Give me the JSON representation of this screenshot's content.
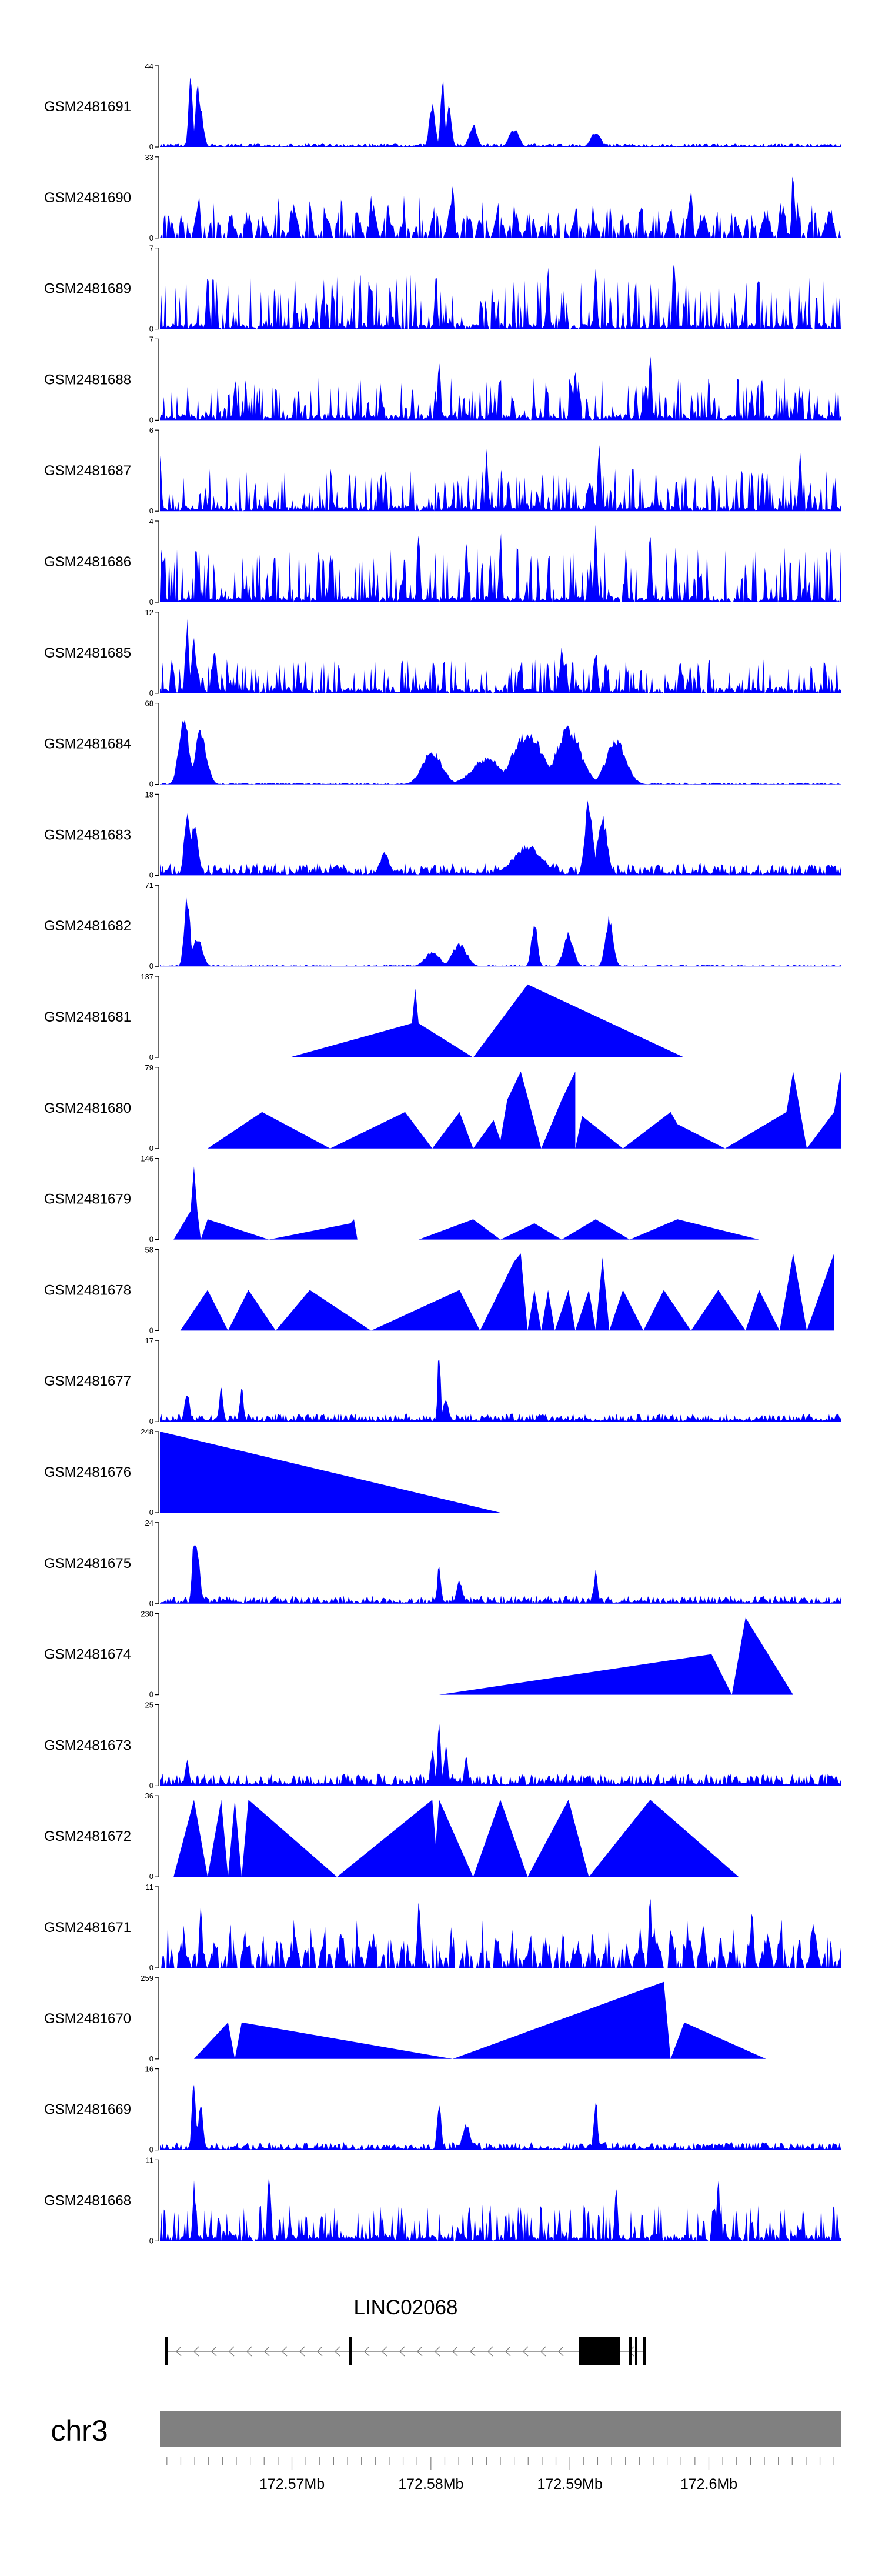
{
  "chart_data": {
    "type": "area",
    "region": {
      "chromosome": "chr3",
      "start_mb": 172.5605,
      "end_mb": 172.6095
    },
    "x_axis": {
      "ticks": [
        "172.57Mb",
        "172.58Mb",
        "172.59Mb",
        "172.6Mb"
      ],
      "tick_values_mb": [
        172.57,
        172.58,
        172.59,
        172.6
      ]
    },
    "tracks": [
      {
        "name": "GSM2481691",
        "ymax": 44,
        "style": "dense",
        "noise": 0.05,
        "peaks": [
          [
            0.045,
            1.0,
            0.004
          ],
          [
            0.055,
            0.95,
            0.004
          ],
          [
            0.06,
            0.5,
            0.006
          ],
          [
            0.4,
            0.6,
            0.006
          ],
          [
            0.415,
            1.0,
            0.004
          ],
          [
            0.425,
            0.55,
            0.005
          ],
          [
            0.46,
            0.3,
            0.008
          ],
          [
            0.52,
            0.25,
            0.01
          ],
          [
            0.64,
            0.2,
            0.01
          ]
        ],
        "color": "#0000ff"
      },
      {
        "name": "GSM2481690",
        "ymax": 33,
        "style": "tri",
        "noise": 0.35,
        "peaks": [
          [
            0.31,
            0.6,
            0.003
          ],
          [
            0.43,
            0.75,
            0.003
          ],
          [
            0.78,
            0.7,
            0.003
          ],
          [
            0.93,
            0.95,
            0.003
          ]
        ],
        "color": "#0000ff"
      },
      {
        "name": "GSM2481689",
        "ymax": 7,
        "style": "spiky",
        "noise": 0.45,
        "peaks": [
          [
            0.755,
            1.0,
            0.003
          ],
          [
            0.57,
            0.85,
            0.003
          ],
          [
            0.64,
            0.8,
            0.003
          ],
          [
            0.07,
            0.75,
            0.003
          ]
        ],
        "color": "#0000ff"
      },
      {
        "name": "GSM2481688",
        "ymax": 7,
        "style": "spiky",
        "noise": 0.35,
        "peaks": [
          [
            0.72,
            1.0,
            0.003
          ],
          [
            0.41,
            0.85,
            0.003
          ],
          [
            0.61,
            0.8,
            0.003
          ]
        ],
        "color": "#0000ff"
      },
      {
        "name": "GSM2481687",
        "ymax": 6,
        "style": "spiky",
        "noise": 0.35,
        "peaks": [
          [
            0.645,
            1.0,
            0.003
          ],
          [
            0.0,
            0.9,
            0.003
          ],
          [
            0.48,
            0.8,
            0.003
          ],
          [
            0.94,
            0.85,
            0.003
          ]
        ],
        "color": "#0000ff"
      },
      {
        "name": "GSM2481686",
        "ymax": 4,
        "style": "spiky",
        "noise": 0.45,
        "peaks": [
          [
            0.38,
            1.0,
            0.003
          ],
          [
            0.5,
            0.95,
            0.003
          ],
          [
            0.64,
            1.0,
            0.003
          ],
          [
            0.72,
            0.95,
            0.003
          ],
          [
            0.45,
            0.95,
            0.003
          ]
        ],
        "color": "#0000ff"
      },
      {
        "name": "GSM2481685",
        "ymax": 12,
        "style": "spiky",
        "noise": 0.28,
        "peaks": [
          [
            0.04,
            0.95,
            0.004
          ],
          [
            0.05,
            0.7,
            0.005
          ],
          [
            0.08,
            0.55,
            0.005
          ],
          [
            0.59,
            0.6,
            0.004
          ],
          [
            0.64,
            0.6,
            0.004
          ]
        ],
        "color": "#0000ff"
      },
      {
        "name": "GSM2481684",
        "ymax": 68,
        "style": "dense",
        "noise": 0.02,
        "peaks": [
          [
            0.035,
            0.95,
            0.01
          ],
          [
            0.06,
            0.7,
            0.012
          ],
          [
            0.4,
            0.45,
            0.02
          ],
          [
            0.48,
            0.35,
            0.03
          ],
          [
            0.54,
            0.7,
            0.03
          ],
          [
            0.6,
            0.75,
            0.025
          ],
          [
            0.67,
            0.6,
            0.02
          ]
        ],
        "color": "#0000ff"
      },
      {
        "name": "GSM2481683",
        "ymax": 18,
        "style": "dense",
        "noise": 0.15,
        "peaks": [
          [
            0.04,
            0.95,
            0.006
          ],
          [
            0.05,
            0.7,
            0.008
          ],
          [
            0.33,
            0.3,
            0.01
          ],
          [
            0.54,
            0.4,
            0.03
          ],
          [
            0.63,
            1.0,
            0.008
          ],
          [
            0.65,
            0.8,
            0.01
          ]
        ],
        "color": "#0000ff"
      },
      {
        "name": "GSM2481682",
        "ymax": 71,
        "style": "dense",
        "noise": 0.02,
        "peaks": [
          [
            0.04,
            0.95,
            0.006
          ],
          [
            0.055,
            0.4,
            0.01
          ],
          [
            0.4,
            0.2,
            0.015
          ],
          [
            0.44,
            0.3,
            0.015
          ],
          [
            0.55,
            0.6,
            0.006
          ],
          [
            0.6,
            0.45,
            0.01
          ],
          [
            0.66,
            0.65,
            0.008
          ]
        ],
        "color": "#0000ff"
      },
      {
        "name": "GSM2481681",
        "ymax": 137,
        "style": "poly",
        "points": [
          [
            0.19,
            0
          ],
          [
            0.37,
            0.42
          ],
          [
            0.375,
            0.85
          ],
          [
            0.38,
            0.42
          ],
          [
            0.46,
            0
          ],
          [
            0.54,
            0.9
          ],
          [
            0.77,
            0
          ]
        ],
        "color": "#0000ff"
      },
      {
        "name": "GSM2481680",
        "ymax": 79,
        "style": "poly",
        "points": [
          [
            0.07,
            0
          ],
          [
            0.15,
            0.45
          ],
          [
            0.25,
            0
          ],
          [
            0.36,
            0.45
          ],
          [
            0.4,
            0
          ],
          [
            0.44,
            0.45
          ],
          [
            0.46,
            0
          ],
          [
            0.49,
            0.35
          ],
          [
            0.5,
            0.1
          ],
          [
            0.51,
            0.6
          ],
          [
            0.53,
            0.95
          ],
          [
            0.56,
            0
          ],
          [
            0.59,
            0.6
          ],
          [
            0.61,
            0.95
          ],
          [
            0.61,
            0
          ],
          [
            0.62,
            0.4
          ],
          [
            0.68,
            0
          ],
          [
            0.75,
            0.45
          ],
          [
            0.76,
            0.3
          ],
          [
            0.83,
            0
          ],
          [
            0.92,
            0.45
          ],
          [
            0.93,
            0.95
          ],
          [
            0.95,
            0
          ],
          [
            0.99,
            0.45
          ],
          [
            1.0,
            0.95
          ],
          [
            1.0,
            0
          ]
        ],
        "color": "#0000ff"
      },
      {
        "name": "GSM2481679",
        "ymax": 146,
        "style": "poly",
        "points": [
          [
            0.02,
            0
          ],
          [
            0.045,
            0.35
          ],
          [
            0.05,
            0.9
          ],
          [
            0.055,
            0.35
          ],
          [
            0.06,
            0
          ],
          [
            0.07,
            0.25
          ],
          [
            0.16,
            0
          ],
          [
            0.28,
            0.2
          ],
          [
            0.285,
            0.25
          ],
          [
            0.29,
            0
          ],
          [
            0.31,
            0
          ],
          [
            0.38,
            0
          ],
          [
            0.46,
            0.25
          ],
          [
            0.5,
            0
          ],
          [
            0.55,
            0.2
          ],
          [
            0.59,
            0
          ],
          [
            0.64,
            0.25
          ],
          [
            0.69,
            0
          ],
          [
            0.76,
            0.25
          ],
          [
            0.88,
            0
          ]
        ],
        "color": "#0000ff"
      },
      {
        "name": "GSM2481678",
        "ymax": 58,
        "style": "poly",
        "points": [
          [
            0.03,
            0
          ],
          [
            0.07,
            0.5
          ],
          [
            0.1,
            0
          ],
          [
            0.13,
            0.5
          ],
          [
            0.17,
            0
          ],
          [
            0.22,
            0.5
          ],
          [
            0.31,
            0
          ],
          [
            0.44,
            0.5
          ],
          [
            0.47,
            0
          ],
          [
            0.52,
            0.85
          ],
          [
            0.53,
            0.95
          ],
          [
            0.54,
            0
          ],
          [
            0.55,
            0.5
          ],
          [
            0.56,
            0
          ],
          [
            0.57,
            0.5
          ],
          [
            0.58,
            0
          ],
          [
            0.6,
            0.5
          ],
          [
            0.61,
            0
          ],
          [
            0.63,
            0.5
          ],
          [
            0.64,
            0
          ],
          [
            0.65,
            0.9
          ],
          [
            0.66,
            0
          ],
          [
            0.68,
            0.5
          ],
          [
            0.71,
            0
          ],
          [
            0.74,
            0.5
          ],
          [
            0.78,
            0
          ],
          [
            0.82,
            0.5
          ],
          [
            0.86,
            0
          ],
          [
            0.88,
            0.5
          ],
          [
            0.91,
            0
          ],
          [
            0.93,
            0.95
          ],
          [
            0.95,
            0
          ],
          [
            0.99,
            0.95
          ],
          [
            0.99,
            0
          ]
        ],
        "color": "#0000ff"
      },
      {
        "name": "GSM2481677",
        "ymax": 17,
        "style": "dense",
        "noise": 0.1,
        "peaks": [
          [
            0.04,
            0.4,
            0.005
          ],
          [
            0.09,
            0.5,
            0.004
          ],
          [
            0.12,
            0.45,
            0.004
          ],
          [
            0.41,
            1.0,
            0.003
          ],
          [
            0.42,
            0.35,
            0.005
          ]
        ],
        "color": "#0000ff"
      },
      {
        "name": "GSM2481676",
        "ymax": 248,
        "style": "poly",
        "points": [
          [
            0.0,
            0
          ],
          [
            0.0,
            1.0
          ],
          [
            0.5,
            0
          ]
        ],
        "color": "#0000ff"
      },
      {
        "name": "GSM2481675",
        "ymax": 24,
        "style": "dense",
        "noise": 0.1,
        "peaks": [
          [
            0.05,
            0.95,
            0.004
          ],
          [
            0.055,
            0.8,
            0.005
          ],
          [
            0.41,
            0.5,
            0.004
          ],
          [
            0.44,
            0.3,
            0.006
          ],
          [
            0.64,
            0.45,
            0.004
          ]
        ],
        "color": "#0000ff"
      },
      {
        "name": "GSM2481674",
        "ymax": 230,
        "style": "poly",
        "points": [
          [
            0.41,
            0
          ],
          [
            0.81,
            0.5
          ],
          [
            0.84,
            0
          ],
          [
            0.86,
            0.95
          ],
          [
            0.93,
            0
          ]
        ],
        "color": "#0000ff"
      },
      {
        "name": "GSM2481673",
        "ymax": 25,
        "style": "dense",
        "noise": 0.15,
        "peaks": [
          [
            0.4,
            0.5,
            0.004
          ],
          [
            0.41,
            1.0,
            0.003
          ],
          [
            0.42,
            0.55,
            0.004
          ],
          [
            0.45,
            0.4,
            0.004
          ],
          [
            0.04,
            0.4,
            0.004
          ]
        ],
        "color": "#0000ff"
      },
      {
        "name": "GSM2481672",
        "ymax": 36,
        "style": "poly",
        "points": [
          [
            0.02,
            0
          ],
          [
            0.05,
            0.95
          ],
          [
            0.07,
            0
          ],
          [
            0.09,
            0.95
          ],
          [
            0.1,
            0
          ],
          [
            0.11,
            0.95
          ],
          [
            0.12,
            0
          ],
          [
            0.13,
            0.95
          ],
          [
            0.26,
            0
          ],
          [
            0.4,
            0.95
          ],
          [
            0.405,
            0.4
          ],
          [
            0.41,
            0.95
          ],
          [
            0.46,
            0
          ],
          [
            0.5,
            0.95
          ],
          [
            0.54,
            0
          ],
          [
            0.6,
            0.95
          ],
          [
            0.63,
            0
          ],
          [
            0.72,
            0.95
          ],
          [
            0.85,
            0
          ]
        ],
        "color": "#0000ff"
      },
      {
        "name": "GSM2481671",
        "ymax": 11,
        "style": "tri",
        "noise": 0.4,
        "peaks": [
          [
            0.06,
            0.9,
            0.003
          ],
          [
            0.38,
            0.9,
            0.003
          ],
          [
            0.72,
            0.95,
            0.003
          ],
          [
            0.87,
            0.8,
            0.003
          ]
        ],
        "color": "#0000ff"
      },
      {
        "name": "GSM2481670",
        "ymax": 259,
        "style": "poly",
        "points": [
          [
            0.05,
            0
          ],
          [
            0.1,
            0.45
          ],
          [
            0.11,
            0
          ],
          [
            0.12,
            0.45
          ],
          [
            0.43,
            0
          ],
          [
            0.74,
            0.95
          ],
          [
            0.75,
            0
          ],
          [
            0.77,
            0.45
          ],
          [
            0.89,
            0
          ]
        ],
        "color": "#0000ff"
      },
      {
        "name": "GSM2481669",
        "ymax": 16,
        "style": "dense",
        "noise": 0.1,
        "peaks": [
          [
            0.05,
            1.0,
            0.004
          ],
          [
            0.06,
            0.6,
            0.005
          ],
          [
            0.41,
            0.7,
            0.004
          ],
          [
            0.45,
            0.35,
            0.008
          ],
          [
            0.64,
            0.65,
            0.004
          ]
        ],
        "color": "#0000ff"
      },
      {
        "name": "GSM2481668",
        "ymax": 11,
        "style": "spiky",
        "noise": 0.3,
        "peaks": [
          [
            0.16,
            1.0,
            0.003
          ],
          [
            0.82,
            0.9,
            0.003
          ],
          [
            0.05,
            0.75,
            0.003
          ],
          [
            0.67,
            0.8,
            0.003
          ]
        ],
        "color": "#0000ff"
      }
    ],
    "gene": {
      "name": "LINC02068",
      "strand": "-",
      "color": "#000000"
    },
    "chromosome_label": "chr3"
  }
}
